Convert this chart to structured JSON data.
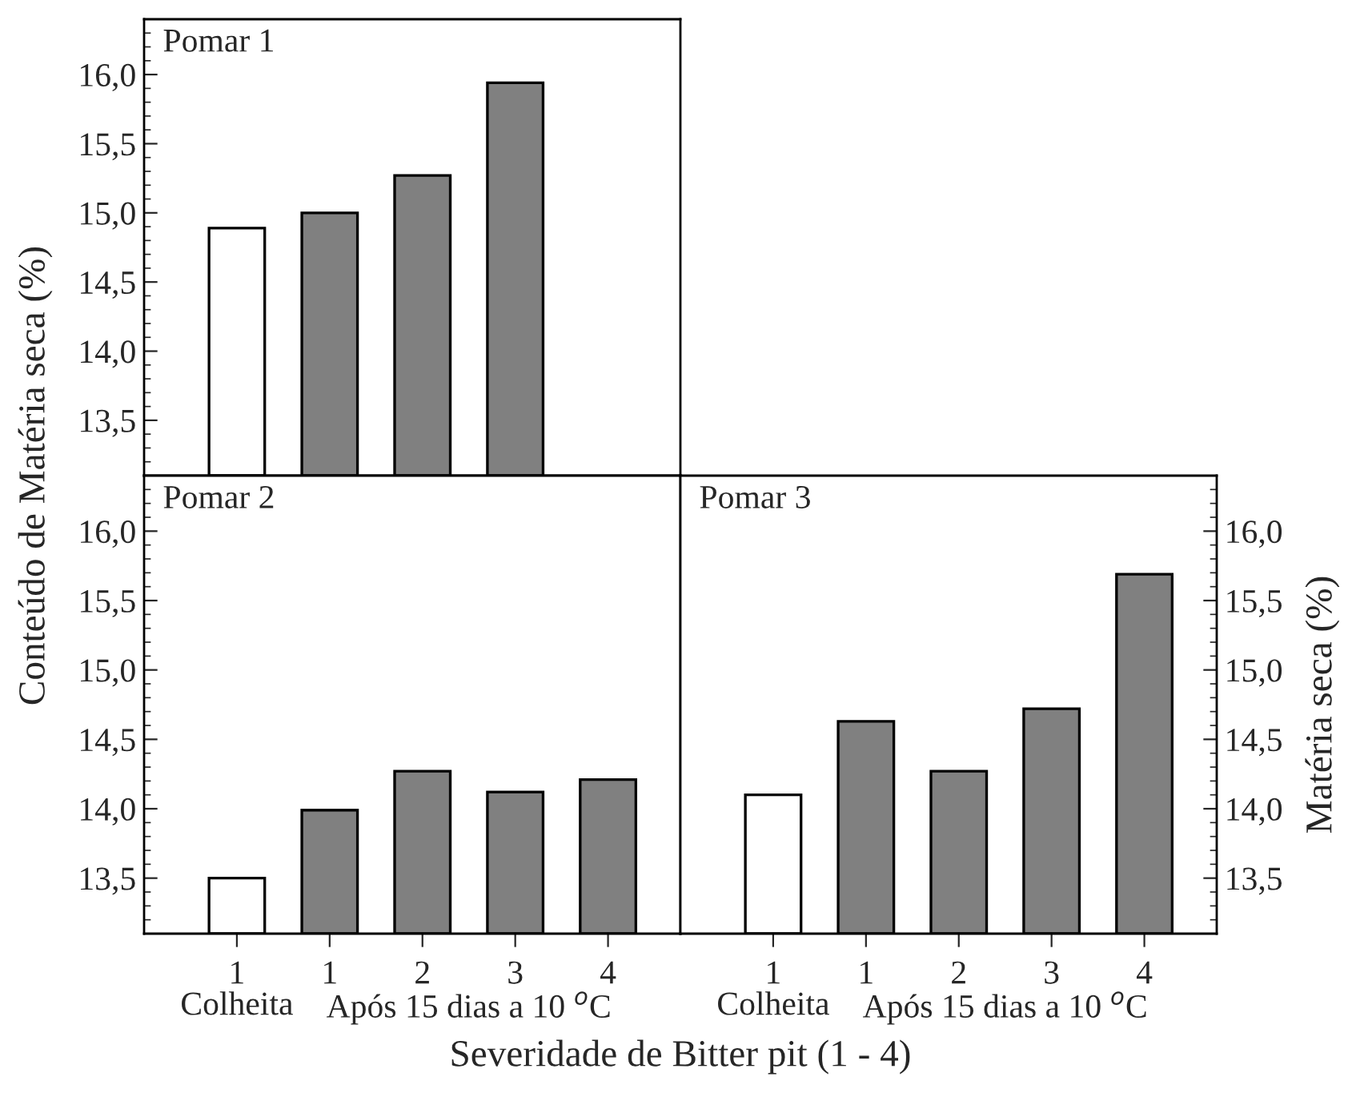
{
  "chart_data": [
    {
      "type": "bar",
      "title": "Pomar 1",
      "categories": [
        "1",
        "1",
        "2",
        "3",
        "4"
      ],
      "values": [
        14.89,
        15.0,
        15.27,
        15.94,
        null
      ],
      "colors": [
        "#ffffff",
        "#808080",
        "#808080",
        "#808080",
        "#808080"
      ],
      "ylim": [
        13.1,
        16.4
      ],
      "yticks": [
        {
          "value": 13.5,
          "label": "13,5"
        },
        {
          "value": 14.0,
          "label": "14,0"
        },
        {
          "value": 14.5,
          "label": "14,5"
        },
        {
          "value": 15.0,
          "label": "15,0"
        },
        {
          "value": 15.5,
          "label": "15,5"
        },
        {
          "value": 16.0,
          "label": "16,0"
        }
      ],
      "tick_labels": "y"
    },
    {
      "type": "bar",
      "title": "Pomar 2",
      "xlabel": "Severidade de Bitter pit (1 - 4)",
      "ylabel": "Conteúdo de Matéria seca (%)",
      "categories": [
        "1",
        "1",
        "2",
        "3",
        "4"
      ],
      "values": [
        13.5,
        13.99,
        14.27,
        14.12,
        14.21
      ],
      "colors": [
        "#ffffff",
        "#808080",
        "#808080",
        "#808080",
        "#808080"
      ],
      "ylim": [
        13.1,
        16.4
      ],
      "yticks": [
        {
          "value": 13.5,
          "label": "13,5"
        },
        {
          "value": 14.0,
          "label": "14,0"
        },
        {
          "value": 14.5,
          "label": "14,5"
        },
        {
          "value": 15.0,
          "label": "15,0"
        },
        {
          "value": 15.5,
          "label": "15,5"
        },
        {
          "value": 16.0,
          "label": "16,0"
        }
      ],
      "annotations": [
        "Colheita",
        "Após 15 dias a 10 $^{o}$C"
      ]
    },
    {
      "type": "bar",
      "title": "Pomar 3",
      "ylabel": "Matéria seca (%)",
      "categories": [
        "1",
        "1",
        "2",
        "3",
        "4"
      ],
      "values": [
        14.1,
        14.63,
        14.27,
        14.72,
        15.69
      ],
      "colors": [
        "#ffffff",
        "#808080",
        "#808080",
        "#808080",
        "#808080"
      ],
      "ylim": [
        13.1,
        16.4
      ],
      "yticks": [
        {
          "value": 13.5,
          "label": "13,5"
        },
        {
          "value": 14.0,
          "label": "14,0"
        },
        {
          "value": 14.5,
          "label": "14,5"
        },
        {
          "value": 15.0,
          "label": "15,0"
        },
        {
          "value": 15.5,
          "label": "15,5"
        },
        {
          "value": 16.0,
          "label": "16,0"
        }
      ],
      "annotations": [
        "Colheita",
        "Após 15 dias a 10 $^{o}$C"
      ]
    }
  ]
}
